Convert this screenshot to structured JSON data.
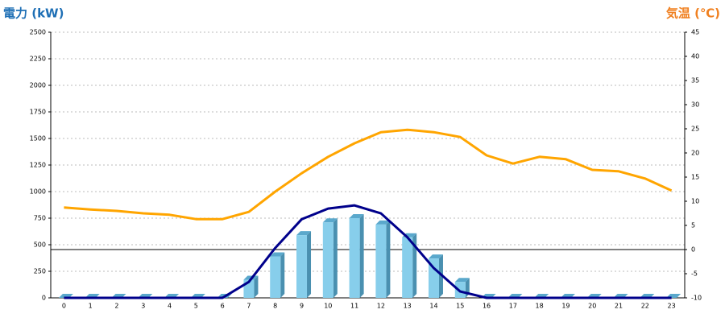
{
  "chart_data": {
    "type": "bar-line",
    "y_title": "電力 (kW)",
    "y2_title": "気温 (℃)",
    "categories": [
      "0",
      "1",
      "2",
      "3",
      "4",
      "5",
      "6",
      "7",
      "8",
      "9",
      "10",
      "11",
      "12",
      "13",
      "14",
      "15",
      "16",
      "17",
      "18",
      "19",
      "20",
      "21",
      "22",
      "23"
    ],
    "series": [
      {
        "type": "bar",
        "color": "#87ceeb",
        "values": [
          0,
          0,
          0,
          0,
          0,
          0,
          0,
          170,
          390,
          590,
          710,
          750,
          690,
          570,
          370,
          150,
          0,
          0,
          0,
          0,
          0,
          0,
          0,
          0
        ]
      },
      {
        "type": "line",
        "color": "#00008b",
        "values": [
          0,
          0,
          0,
          0,
          0,
          0,
          0,
          150,
          470,
          740,
          840,
          870,
          795,
          570,
          280,
          60,
          0,
          0,
          0,
          0,
          0,
          0,
          0,
          0
        ]
      },
      {
        "type": "line",
        "color": "#ffa500",
        "axis": "y2",
        "values": [
          8.7,
          8.3,
          8.0,
          7.5,
          7.2,
          6.3,
          6.3,
          7.8,
          12,
          15.8,
          19.2,
          22,
          24.3,
          24.8,
          24.3,
          23.3,
          19.5,
          17.8,
          19.2,
          18.7,
          16.5,
          16.2,
          14.7,
          12.2
        ]
      }
    ],
    "ylim": [
      0,
      2500
    ],
    "yticks": [
      0,
      250,
      500,
      750,
      1000,
      1250,
      1500,
      1750,
      2000,
      2250,
      2500
    ],
    "y2lim": [
      -10,
      45
    ],
    "y2ticks": [
      -10,
      -5,
      0,
      5,
      10,
      15,
      20,
      25,
      30,
      35,
      40,
      45
    ],
    "grid": true
  }
}
